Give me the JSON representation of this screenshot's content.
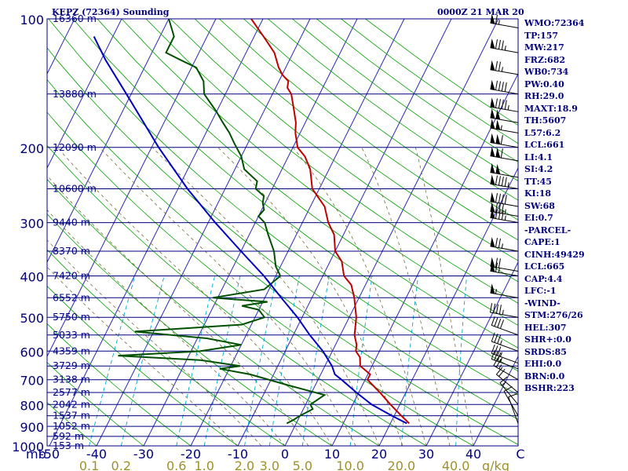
{
  "header": {
    "title": "KEPZ (72364) Sounding",
    "date": "0000Z 21 MAR 20"
  },
  "indices": [
    "WMO:72364",
    "TP:157",
    "MW:217",
    "FRZ:682",
    "WB0:734",
    "PW:0.40",
    "RH:29.0",
    "MAXT:18.9",
    "TH:5607",
    "L57:6.2",
    "LCL:661",
    "LI:4.1",
    "SI:4.2",
    "TT:45",
    "KI:18",
    "SW:68",
    "EI:0.7",
    "-PARCEL-",
    "CAPE:1",
    "CINH:49429",
    "LCL:665",
    "CAP:4.4",
    "LFC:-1",
    "-WIND-",
    "STM:276/26",
    "HEL:307",
    "SHR+:0.0",
    "SRDS:85",
    "EHI:0.0",
    "BRN:0.0",
    "BSHR:223"
  ],
  "colors": {
    "background": "#ffffff",
    "isobar": "#000080",
    "isotherm": "#2a2ab4",
    "dry_adiabat": "#00a000",
    "moist_adiabat": "#7a6a3a",
    "mixing_ratio": "#00a8d0",
    "temperature": "#c00000",
    "dewpoint": "#005000",
    "parcel": "#0000c0",
    "text": "#000080",
    "mixing_label": "#a0902a",
    "wind_barb": "#000000"
  },
  "chart_data": {
    "type": "skew-t",
    "xlabel": "C",
    "ylabel": "mb",
    "mixing_ratio_unit": "g/kg",
    "pressure_levels": [
      100,
      200,
      300,
      400,
      500,
      600,
      700,
      800,
      900,
      1000
    ],
    "pressure_tick_labels": [
      "100",
      "200",
      "300",
      "400",
      "500",
      "600",
      "700",
      "800",
      "900",
      "1000"
    ],
    "temperature_ticks": [
      -50,
      -40,
      -30,
      -20,
      -10,
      0,
      10,
      20,
      30,
      40,
      50
    ],
    "temperature_tick_labels": [
      "-50",
      "-40",
      "-30",
      "-20",
      "-10",
      "0",
      "10",
      "20",
      "30",
      "40",
      "C"
    ],
    "mixing_ratios": [
      0.1,
      0.2,
      0.6,
      1.0,
      2.0,
      3.0,
      5.0,
      10.0,
      20.0,
      40.0
    ],
    "mixing_ratio_labels": [
      "0.1",
      "0.2",
      "0.6",
      "1.0",
      "2.0",
      "3.0",
      "5.0",
      "10.0",
      "20.0",
      "40.0"
    ],
    "height_labels": [
      {
        "p": 100,
        "label": "16360 m"
      },
      {
        "p": 150,
        "label": "13880 m"
      },
      {
        "p": 200,
        "label": "12090 m"
      },
      {
        "p": 250,
        "label": "10600 m"
      },
      {
        "p": 300,
        "label": "9440 m"
      },
      {
        "p": 350,
        "label": "8370 m"
      },
      {
        "p": 400,
        "label": "7420 m"
      },
      {
        "p": 450,
        "label": "6552 m"
      },
      {
        "p": 500,
        "label": "5750 m"
      },
      {
        "p": 550,
        "label": "5033 m"
      },
      {
        "p": 600,
        "label": "4359 m"
      },
      {
        "p": 650,
        "label": "3729 m"
      },
      {
        "p": 700,
        "label": "3138 m"
      },
      {
        "p": 750,
        "label": "2577 m"
      },
      {
        "p": 800,
        "label": "2042 m"
      },
      {
        "p": 850,
        "label": "1537 m"
      },
      {
        "p": 900,
        "label": "1052 m"
      },
      {
        "p": 950,
        "label": "592 m"
      },
      {
        "p": 1000,
        "label": "153 m"
      }
    ],
    "series": [
      {
        "name": "temperature",
        "points": [
          [
            886,
            24.0
          ],
          [
            850,
            21.5
          ],
          [
            800,
            18.0
          ],
          [
            750,
            14.5
          ],
          [
            700,
            10.5
          ],
          [
            680,
            10.5
          ],
          [
            650,
            7.5
          ],
          [
            620,
            6.5
          ],
          [
            600,
            5.0
          ],
          [
            580,
            4.5
          ],
          [
            550,
            3.0
          ],
          [
            500,
            1.5
          ],
          [
            450,
            -1.0
          ],
          [
            420,
            -3.0
          ],
          [
            400,
            -5.5
          ],
          [
            370,
            -7.5
          ],
          [
            350,
            -10.0
          ],
          [
            320,
            -12.0
          ],
          [
            300,
            -14.5
          ],
          [
            275,
            -17.0
          ],
          [
            250,
            -21.5
          ],
          [
            225,
            -24.0
          ],
          [
            210,
            -26.5
          ],
          [
            200,
            -29.0
          ],
          [
            185,
            -31.0
          ],
          [
            175,
            -32.0
          ],
          [
            165,
            -33.5
          ],
          [
            150,
            -36.0
          ],
          [
            145,
            -37.5
          ],
          [
            140,
            -38.0
          ],
          [
            135,
            -40.0
          ],
          [
            130,
            -41.5
          ],
          [
            120,
            -44.0
          ],
          [
            110,
            -48.0
          ],
          [
            100,
            -52.5
          ]
        ]
      },
      {
        "name": "dewpoint",
        "points": [
          [
            886,
            -2.0
          ],
          [
            870,
            -1.0
          ],
          [
            850,
            0.0
          ],
          [
            820,
            2.0
          ],
          [
            800,
            1.0
          ],
          [
            760,
            3.0
          ],
          [
            720,
            -6.0
          ],
          [
            680,
            -15.0
          ],
          [
            660,
            -22.0
          ],
          [
            650,
            -18.0
          ],
          [
            630,
            -27.0
          ],
          [
            615,
            -45.0
          ],
          [
            600,
            -28.0
          ],
          [
            580,
            -20.0
          ],
          [
            560,
            -28.0
          ],
          [
            540,
            -44.0
          ],
          [
            520,
            -22.0
          ],
          [
            500,
            -18.0
          ],
          [
            480,
            -20.0
          ],
          [
            470,
            -24.0
          ],
          [
            460,
            -19.0
          ],
          [
            450,
            -31.0
          ],
          [
            430,
            -21.0
          ],
          [
            400,
            -19.0
          ],
          [
            380,
            -21.0
          ],
          [
            350,
            -23.0
          ],
          [
            320,
            -26.0
          ],
          [
            300,
            -28.0
          ],
          [
            290,
            -30.0
          ],
          [
            280,
            -29.5
          ],
          [
            270,
            -30.5
          ],
          [
            260,
            -31.0
          ],
          [
            250,
            -33.5
          ],
          [
            240,
            -34.0
          ],
          [
            225,
            -38.0
          ],
          [
            210,
            -40.0
          ],
          [
            195,
            -43.0
          ],
          [
            185,
            -45.0
          ],
          [
            175,
            -47.5
          ],
          [
            165,
            -50.0
          ],
          [
            150,
            -54.5
          ],
          [
            140,
            -56.0
          ],
          [
            130,
            -59.0
          ],
          [
            125,
            -63.0
          ],
          [
            120,
            -67.0
          ],
          [
            110,
            -67.0
          ],
          [
            100,
            -70.0
          ]
        ]
      },
      {
        "name": "parcel",
        "points": [
          [
            886,
            23.5
          ],
          [
            850,
            19.5
          ],
          [
            800,
            14.0
          ],
          [
            750,
            9.5
          ],
          [
            700,
            5.0
          ],
          [
            680,
            3.0
          ],
          [
            650,
            1.5
          ],
          [
            600,
            -2.0
          ],
          [
            550,
            -6.5
          ],
          [
            500,
            -11.0
          ],
          [
            450,
            -16.5
          ],
          [
            400,
            -22.5
          ],
          [
            350,
            -30.0
          ],
          [
            300,
            -38.5
          ],
          [
            250,
            -48.0
          ],
          [
            200,
            -58.5
          ],
          [
            150,
            -71.0
          ],
          [
            125,
            -79.0
          ],
          [
            110,
            -84.0
          ]
        ]
      }
    ],
    "wind_barbs": [
      {
        "p": 105,
        "dir": 280,
        "spd": 65
      },
      {
        "p": 120,
        "dir": 280,
        "spd": 85
      },
      {
        "p": 135,
        "dir": 280,
        "spd": 75
      },
      {
        "p": 150,
        "dir": 280,
        "spd": 90
      },
      {
        "p": 165,
        "dir": 280,
        "spd": 95
      },
      {
        "p": 175,
        "dir": 280,
        "spd": 100
      },
      {
        "p": 185,
        "dir": 280,
        "spd": 105
      },
      {
        "p": 200,
        "dir": 280,
        "spd": 110
      },
      {
        "p": 215,
        "dir": 280,
        "spd": 110
      },
      {
        "p": 235,
        "dir": 280,
        "spd": 100
      },
      {
        "p": 250,
        "dir": 280,
        "spd": 95
      },
      {
        "p": 275,
        "dir": 280,
        "spd": 90
      },
      {
        "p": 290,
        "dir": 280,
        "spd": 85
      },
      {
        "p": 300,
        "dir": 280,
        "spd": 85
      },
      {
        "p": 350,
        "dir": 280,
        "spd": 75
      },
      {
        "p": 390,
        "dir": 280,
        "spd": 70
      },
      {
        "p": 400,
        "dir": 280,
        "spd": 65
      },
      {
        "p": 450,
        "dir": 280,
        "spd": 55
      },
      {
        "p": 500,
        "dir": 280,
        "spd": 45
      },
      {
        "p": 550,
        "dir": 290,
        "spd": 40
      },
      {
        "p": 600,
        "dir": 290,
        "spd": 35
      },
      {
        "p": 640,
        "dir": 290,
        "spd": 35
      },
      {
        "p": 660,
        "dir": 290,
        "spd": 35
      },
      {
        "p": 700,
        "dir": 300,
        "spd": 25
      },
      {
        "p": 750,
        "dir": 310,
        "spd": 20
      },
      {
        "p": 800,
        "dir": 320,
        "spd": 15
      },
      {
        "p": 850,
        "dir": 330,
        "spd": 10
      },
      {
        "p": 886,
        "dir": 340,
        "spd": 10
      }
    ]
  }
}
